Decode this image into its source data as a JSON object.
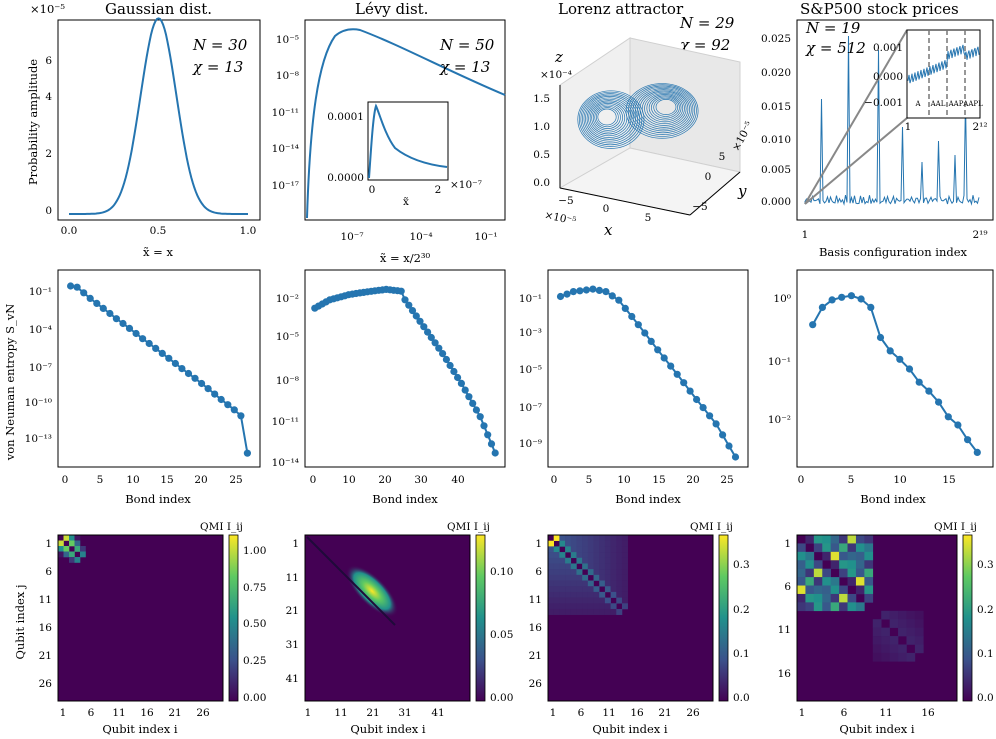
{
  "colors": {
    "series": "#2575b0",
    "heat_low": "#440154",
    "heat_mid": "#21918c",
    "heat_high": "#fde725"
  },
  "row1": {
    "gaussian": {
      "title": "Gaussian dist.",
      "ylabel": "Probability amplitude",
      "yexp": "×10⁻⁵",
      "xlabel": "x̃ = x",
      "N": "N = 30",
      "chi": "χ = 13",
      "xticks": [
        "0.0",
        "0.5",
        "1.0"
      ],
      "yticks": [
        "0",
        "2",
        "4",
        "6"
      ]
    },
    "levy": {
      "title": "Lévy dist.",
      "xlabel": "x̃ = x/2³⁰",
      "N": "N = 50",
      "chi": "χ = 13",
      "yticks": [
        "10⁻⁵",
        "10⁻⁸",
        "10⁻¹¹",
        "10⁻¹⁴",
        "10⁻¹⁷"
      ],
      "xticks": [
        "10⁻⁷",
        "10⁻⁴",
        "10⁻¹"
      ],
      "inset_yticks": [
        "0.0001",
        "0.0000"
      ],
      "inset_xticks": [
        "0",
        "2"
      ],
      "inset_xlabel": "x̃",
      "inset_exp": "×10⁻⁷"
    },
    "lorenz": {
      "title": "Lorenz attractor",
      "N": "N = 29",
      "chi": "χ = 92",
      "zlabel": "z",
      "zexp": "×10⁻⁴",
      "zticks": [
        "1.5",
        "1.0",
        "0.5",
        "0.0"
      ],
      "xlabel": "x",
      "xexp": "×10⁻⁵",
      "xticks": [
        "−5",
        "0",
        "5"
      ],
      "ylabel": "y",
      "yexp": "×10⁻⁵",
      "yticks": [
        "5",
        "0",
        "−5"
      ]
    },
    "sp500": {
      "title": "S&P500 stock prices",
      "N": "N = 19",
      "chi": "χ = 512",
      "xlabel": "Basis configuration index",
      "xticks": [
        "1",
        "2¹⁹"
      ],
      "yticks": [
        "0.025",
        "0.020",
        "0.015",
        "0.010",
        "0.005",
        "0.000"
      ],
      "inset_yticks": [
        "0.001",
        "0.000",
        "−0.001"
      ],
      "inset_xticks": [
        "1",
        "2¹²"
      ],
      "inset_labels": [
        "A",
        "AAL",
        "AAP",
        "AAPL"
      ]
    }
  },
  "row2": {
    "ylabel": "von Neuman entropy S_vN",
    "xlabel": "Bond index",
    "panels": [
      {
        "yticks": [
          "10⁻¹",
          "10⁻⁴",
          "10⁻⁷",
          "10⁻¹⁰",
          "10⁻¹³"
        ],
        "xticks": [
          "0",
          "5",
          "10",
          "15",
          "20",
          "25"
        ]
      },
      {
        "yticks": [
          "10⁻²",
          "10⁻⁵",
          "10⁻⁸",
          "10⁻¹¹",
          "10⁻¹⁴"
        ],
        "xticks": [
          "0",
          "10",
          "20",
          "30",
          "40"
        ]
      },
      {
        "yticks": [
          "10⁻¹",
          "10⁻³",
          "10⁻⁵",
          "10⁻⁷",
          "10⁻⁹"
        ],
        "xticks": [
          "0",
          "5",
          "10",
          "15",
          "20",
          "25"
        ]
      },
      {
        "yticks": [
          "10⁰",
          "10⁻¹",
          "10⁻²"
        ],
        "xticks": [
          "0",
          "5",
          "10",
          "15"
        ]
      }
    ]
  },
  "row3": {
    "ylabel": "Qubit index j",
    "xlabel": "Qubit index i",
    "cbar_title": "QMI I_ij",
    "panels": [
      {
        "ticks": [
          "1",
          "6",
          "11",
          "16",
          "21",
          "26"
        ],
        "cbar": [
          "1.00",
          "0.75",
          "0.50",
          "0.25",
          "0.00"
        ]
      },
      {
        "ticks": [
          "1",
          "11",
          "21",
          "31",
          "41"
        ],
        "cbar": [
          "0.10",
          "0.05",
          "0.00"
        ]
      },
      {
        "ticks": [
          "1",
          "6",
          "11",
          "16",
          "21",
          "26"
        ],
        "cbar": [
          "0.3",
          "0.2",
          "0.1",
          "0.0"
        ]
      },
      {
        "ticks": [
          "1",
          "6",
          "11",
          "16"
        ],
        "cbar": [
          "0.3",
          "0.2",
          "0.1",
          "0.0"
        ]
      }
    ]
  },
  "chart_data": [
    {
      "type": "line",
      "panel": "Gaussian dist.",
      "x": [
        0.0,
        0.2,
        0.3,
        0.4,
        0.5,
        0.6,
        0.7,
        0.8,
        1.0
      ],
      "y": [
        0.0,
        0.05,
        0.9,
        4.8,
        7.3,
        4.8,
        0.9,
        0.05,
        0.0
      ],
      "y_unit": "×10⁻⁵",
      "xlim": [
        0,
        1
      ],
      "ylim": [
        0,
        7.5
      ]
    },
    {
      "type": "line",
      "panel": "Lévy dist.",
      "xscale": "log",
      "yscale": "log",
      "x": [
        1e-10,
        1e-09,
        1e-08,
        1e-07,
        1e-06,
        1e-05,
        0.0001,
        0.001,
        0.01,
        0.1,
        1
      ],
      "y": [
        1e-18,
        1e-08,
        1e-05,
        0.0001,
        0.0002,
        0.0001,
        3e-05,
        5e-06,
        8e-07,
        1.3e-07,
        2e-08
      ]
    },
    {
      "type": "line",
      "panel": "Lorenz attractor",
      "note": "3D trajectory"
    },
    {
      "type": "line",
      "panel": "S&P500 stock prices",
      "xlim": [
        1,
        524288
      ],
      "ylim": [
        -0.001,
        0.026
      ],
      "peaks_y": [
        0.015,
        0.024,
        0.022,
        0.011,
        0.006,
        0.009,
        0.007,
        0.015
      ]
    },
    {
      "type": "line",
      "panel": "entropy-gaussian",
      "yscale": "log",
      "x": [
        1,
        2,
        4,
        6,
        8,
        10,
        12,
        14,
        16,
        18,
        20,
        22,
        24,
        26,
        27,
        28
      ],
      "y": [
        0.5,
        0.4,
        0.05,
        0.008,
        0.0012,
        0.0002,
        3e-05,
        5e-06,
        8e-07,
        1.2e-07,
        2e-08,
        3e-09,
        4e-10,
        6e-11,
        2e-11,
        2e-14
      ]
    },
    {
      "type": "line",
      "panel": "entropy-levy",
      "yscale": "log",
      "x": [
        1,
        5,
        10,
        15,
        20,
        24,
        25,
        30,
        35,
        40,
        45,
        49
      ],
      "y": [
        0.0012,
        0.005,
        0.012,
        0.02,
        0.03,
        0.022,
        0.005,
        5e-05,
        5e-07,
        3e-09,
        1e-11,
        2e-14
      ]
    },
    {
      "type": "line",
      "panel": "entropy-lorenz",
      "yscale": "log",
      "x": [
        1,
        3,
        6,
        8,
        10,
        13,
        16,
        19,
        22,
        25,
        28
      ],
      "y": [
        0.5,
        1.0,
        1.4,
        1.0,
        0.3,
        0.01,
        0.0003,
        1e-05,
        3e-07,
        1e-08,
        1e-10
      ]
    },
    {
      "type": "line",
      "panel": "entropy-sp500",
      "yscale": "log",
      "x": [
        1,
        2,
        3,
        4,
        5,
        6,
        7,
        8,
        9,
        10,
        11,
        12,
        13,
        14,
        15,
        16,
        17,
        18
      ],
      "y": [
        1.0,
        2.0,
        2.7,
        3.0,
        3.2,
        2.8,
        2.0,
        0.6,
        0.35,
        0.25,
        0.17,
        0.1,
        0.07,
        0.045,
        0.025,
        0.018,
        0.01,
        0.006
      ]
    },
    {
      "type": "heatmap",
      "panel": "qmi-gaussian",
      "max": 1.08
    },
    {
      "type": "heatmap",
      "panel": "qmi-levy",
      "max": 0.13
    },
    {
      "type": "heatmap",
      "panel": "qmi-lorenz",
      "max": 0.38
    },
    {
      "type": "heatmap",
      "panel": "qmi-sp500",
      "max": 0.38
    }
  ]
}
